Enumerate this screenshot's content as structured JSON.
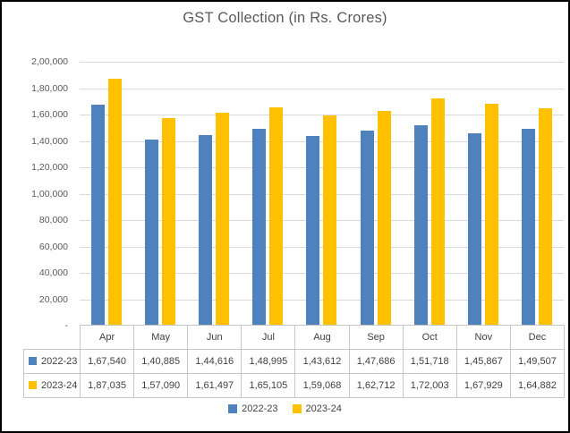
{
  "title": "GST Collection (in Rs. Crores)",
  "colors": {
    "series_2022_23": "#4F81BD",
    "series_2023_24": "#FFC000",
    "gridline": "#D9D9D9",
    "table_border": "#C6C6C6",
    "axis_text": "#595959",
    "table_text": "#3F3F3F",
    "frame_border": "#000000",
    "background": "#FFFFFF"
  },
  "chart_data": {
    "type": "bar",
    "title": "GST Collection (in Rs. Crores)",
    "xlabel": "",
    "ylabel": "",
    "categories": [
      "Apr",
      "May",
      "Jun",
      "Jul",
      "Aug",
      "Sep",
      "Oct",
      "Nov",
      "Dec"
    ],
    "series": [
      {
        "name": "2022-23",
        "color": "#4F81BD",
        "values": [
          167540,
          140885,
          144616,
          148995,
          143612,
          147686,
          151718,
          145867,
          149507
        ],
        "formatted": [
          "1,67,540",
          "1,40,885",
          "1,44,616",
          "1,48,995",
          "1,43,612",
          "1,47,686",
          "1,51,718",
          "1,45,867",
          "1,49,507"
        ]
      },
      {
        "name": "2023-24",
        "color": "#FFC000",
        "values": [
          187035,
          157090,
          161497,
          165105,
          159068,
          162712,
          172003,
          167929,
          164882
        ],
        "formatted": [
          "1,87,035",
          "1,57,090",
          "1,61,497",
          "1,65,105",
          "1,59,068",
          "1,62,712",
          "1,72,003",
          "1,67,929",
          "1,64,882"
        ]
      }
    ],
    "ylim": [
      0,
      200000
    ],
    "ytick_interval": 20000,
    "ytick_labels_top_to_bottom": [
      "2,00,000",
      "1,80,000",
      "1,60,000",
      "1,40,000",
      "1,20,000",
      "1,00,000",
      "80,000",
      "60,000",
      "40,000",
      "20,000",
      "-"
    ],
    "grid": true,
    "legend_position": "bottom",
    "data_table_shown": true
  },
  "legend": {
    "items": [
      {
        "label": "2022-23",
        "color": "#4F81BD"
      },
      {
        "label": "2023-24",
        "color": "#FFC000"
      }
    ]
  }
}
